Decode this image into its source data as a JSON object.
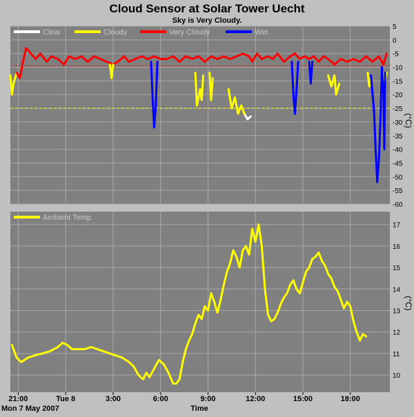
{
  "title": "Cloud Sensor at Solar Tower Uecht",
  "subtitle": "Sky is Very Cloudy.",
  "x_axis": {
    "label": "Time",
    "date_label": "Mon 7 May 2007",
    "ticks": [
      "21:00",
      "Tue 8",
      "3:00",
      "6:00",
      "9:00",
      "12:00",
      "15:00",
      "18:00"
    ]
  },
  "colors": {
    "background": "#c0c0c0",
    "plot_background": "#808080",
    "grid": "#a8a8a8",
    "clear": "#ffffff",
    "cloudy": "#ffff00",
    "very_cloudy": "#ff0000",
    "wet": "#0000ff",
    "ambient": "#ffff00"
  },
  "chart_data": [
    {
      "type": "line",
      "title": "Cloud Sensor at Solar Tower Uecht",
      "subtitle": "Sky is Very Cloudy.",
      "ylabel": "(°C)",
      "ylim": [
        -60,
        5
      ],
      "yticks": [
        5,
        0,
        -5,
        -10,
        -15,
        -20,
        -25,
        -30,
        -35,
        -40,
        -45,
        -50,
        -55,
        -60
      ],
      "xlabel": "Time",
      "x_unit": "hours since Mon 7 May 2007 00:00",
      "xlim": [
        20.5,
        44.5
      ],
      "grid": true,
      "legend_position": "top-left",
      "legend": [
        {
          "name": "Clear",
          "color": "#ffffff"
        },
        {
          "name": "Cloudy",
          "color": "#ffff00"
        },
        {
          "name": "Very Cloudy",
          "color": "#ff0000"
        },
        {
          "name": "Wet",
          "color": "#0000ff"
        }
      ],
      "threshold_lines": [
        {
          "value": -9.5,
          "color": "#ff0000",
          "style": "dotted"
        },
        {
          "value": -25,
          "color": "#ffff00",
          "style": "dashed"
        }
      ],
      "series": [
        {
          "name": "Cloudy",
          "color": "#ffff00",
          "points": [
            [
              20.5,
              -13
            ],
            [
              20.6,
              -20
            ],
            [
              20.7,
              -16
            ],
            [
              20.9,
              -12
            ]
          ]
        },
        {
          "name": "Very Cloudy",
          "color": "#ff0000",
          "points": [
            [
              20.9,
              -12
            ],
            [
              21.1,
              -14
            ],
            [
              21.3,
              -8
            ],
            [
              21.5,
              -3
            ],
            [
              21.8,
              -5
            ],
            [
              22.1,
              -7
            ],
            [
              22.4,
              -5
            ],
            [
              22.8,
              -8
            ],
            [
              23.1,
              -6
            ],
            [
              23.5,
              -7
            ],
            [
              23.9,
              -9
            ],
            [
              24.2,
              -6
            ],
            [
              24.6,
              -7
            ],
            [
              25.0,
              -6
            ],
            [
              25.4,
              -8
            ],
            [
              25.8,
              -6
            ],
            [
              26.2,
              -7
            ],
            [
              26.6,
              -8
            ],
            [
              27.0,
              -9
            ],
            [
              27.3,
              -8
            ],
            [
              27.7,
              -6
            ],
            [
              28.0,
              -8
            ],
            [
              28.4,
              -7
            ],
            [
              28.8,
              -6
            ],
            [
              29.2,
              -7
            ],
            [
              29.6,
              -6
            ],
            [
              30.0,
              -7
            ],
            [
              30.4,
              -7
            ],
            [
              30.8,
              -6
            ],
            [
              31.2,
              -8
            ],
            [
              31.6,
              -6
            ],
            [
              32.0,
              -7
            ],
            [
              32.4,
              -6
            ],
            [
              32.8,
              -8
            ],
            [
              33.2,
              -6
            ],
            [
              33.6,
              -7
            ],
            [
              34.0,
              -6
            ],
            [
              34.4,
              -7
            ],
            [
              34.8,
              -6
            ],
            [
              35.2,
              -5
            ],
            [
              35.6,
              -6
            ],
            [
              35.8,
              -8
            ],
            [
              36.1,
              -5
            ],
            [
              36.4,
              -7
            ],
            [
              36.8,
              -6
            ],
            [
              37.1,
              -7
            ],
            [
              37.4,
              -5
            ],
            [
              37.8,
              -8
            ],
            [
              38.2,
              -6
            ],
            [
              38.5,
              -5
            ],
            [
              38.8,
              -7
            ],
            [
              39.1,
              -6
            ],
            [
              39.4,
              -7
            ],
            [
              39.7,
              -6
            ],
            [
              40.0,
              -8
            ],
            [
              40.3,
              -6
            ],
            [
              40.6,
              -7
            ],
            [
              41.0,
              -9
            ],
            [
              41.4,
              -7
            ],
            [
              41.8,
              -8
            ],
            [
              42.2,
              -7
            ],
            [
              42.6,
              -8
            ],
            [
              43.0,
              -6
            ],
            [
              43.4,
              -8
            ],
            [
              43.8,
              -6
            ],
            [
              44.1,
              -9
            ],
            [
              44.3,
              -5
            ]
          ]
        },
        {
          "name": "Cloudy",
          "color": "#ffff00",
          "points": [
            [
              26.8,
              -9
            ],
            [
              26.9,
              -14
            ],
            [
              27.0,
              -9
            ]
          ]
        },
        {
          "name": "Cloudy",
          "color": "#ffff00",
          "points": [
            [
              32.2,
              -12
            ],
            [
              32.3,
              -24
            ],
            [
              32.5,
              -18
            ],
            [
              32.6,
              -22
            ],
            [
              32.7,
              -13
            ]
          ]
        },
        {
          "name": "Cloudy",
          "color": "#ffff00",
          "points": [
            [
              33.1,
              -12
            ],
            [
              33.2,
              -22
            ],
            [
              33.3,
              -14
            ]
          ]
        },
        {
          "name": "Cloudy",
          "color": "#ffff00",
          "points": [
            [
              34.3,
              -18
            ],
            [
              34.5,
              -25
            ],
            [
              34.7,
              -21
            ],
            [
              34.9,
              -27
            ],
            [
              35.1,
              -24
            ]
          ]
        },
        {
          "name": "Clear",
          "color": "#ffffff",
          "points": [
            [
              35.3,
              -27
            ],
            [
              35.5,
              -29
            ],
            [
              35.7,
              -28
            ]
          ]
        },
        {
          "name": "Cloudy",
          "color": "#ffff00",
          "points": [
            [
              35.1,
              -24
            ],
            [
              35.3,
              -27
            ]
          ]
        },
        {
          "name": "Cloudy",
          "color": "#ffff00",
          "points": [
            [
              40.6,
              -13
            ],
            [
              40.8,
              -17
            ],
            [
              41.0,
              -13
            ],
            [
              41.1,
              -20
            ],
            [
              41.3,
              -16
            ]
          ]
        },
        {
          "name": "Cloudy",
          "color": "#ffff00",
          "points": [
            [
              43.1,
              -12
            ],
            [
              43.2,
              -17
            ],
            [
              43.3,
              -13
            ]
          ]
        },
        {
          "name": "Cloudy",
          "color": "#ffff00",
          "points": [
            [
              44.05,
              -12
            ],
            [
              44.15,
              -16
            ],
            [
              44.3,
              -12
            ]
          ]
        },
        {
          "name": "Wet",
          "color": "#0000ff",
          "points": [
            [
              29.4,
              -8
            ],
            [
              29.5,
              -22
            ],
            [
              29.6,
              -32
            ],
            [
              29.7,
              -24
            ],
            [
              29.8,
              -8
            ]
          ]
        },
        {
          "name": "Wet",
          "color": "#0000ff",
          "points": [
            [
              38.3,
              -8
            ],
            [
              38.4,
              -20
            ],
            [
              38.5,
              -27
            ],
            [
              38.6,
              -18
            ],
            [
              38.7,
              -8
            ]
          ]
        },
        {
          "name": "Wet",
          "color": "#0000ff",
          "points": [
            [
              39.4,
              -8
            ],
            [
              39.5,
              -16
            ],
            [
              39.6,
              -8
            ]
          ]
        },
        {
          "name": "Wet",
          "color": "#0000ff",
          "points": [
            [
              43.3,
              -13
            ],
            [
              43.5,
              -26
            ],
            [
              43.6,
              -40
            ],
            [
              43.7,
              -52
            ],
            [
              43.8,
              -44
            ],
            [
              43.9,
              -30
            ],
            [
              44.0,
              -10
            ],
            [
              44.1,
              -20
            ],
            [
              44.15,
              -40
            ],
            [
              44.2,
              -12
            ]
          ]
        }
      ]
    },
    {
      "type": "line",
      "ylabel": "(°C)",
      "ylim": [
        9.2,
        17.6
      ],
      "yticks": [
        10,
        11,
        12,
        13,
        14,
        15,
        16,
        17
      ],
      "xlabel": "Time",
      "x_unit": "hours since Mon 7 May 2007 00:00",
      "xlim": [
        20.5,
        44.5
      ],
      "grid": true,
      "legend_position": "top-left",
      "legend": [
        {
          "name": "Ambient Temp",
          "color": "#ffff00"
        }
      ],
      "series": [
        {
          "name": "Ambient Temp",
          "color": "#ffff00",
          "points": [
            [
              20.6,
              11.4
            ],
            [
              20.9,
              10.8
            ],
            [
              21.2,
              10.6
            ],
            [
              21.6,
              10.8
            ],
            [
              22.0,
              10.9
            ],
            [
              22.5,
              11.0
            ],
            [
              23.0,
              11.1
            ],
            [
              23.5,
              11.3
            ],
            [
              23.8,
              11.5
            ],
            [
              24.1,
              11.4
            ],
            [
              24.4,
              11.2
            ],
            [
              24.8,
              11.2
            ],
            [
              25.2,
              11.2
            ],
            [
              25.6,
              11.3
            ],
            [
              26.0,
              11.2
            ],
            [
              26.4,
              11.1
            ],
            [
              26.8,
              11.0
            ],
            [
              27.2,
              10.9
            ],
            [
              27.6,
              10.8
            ],
            [
              28.0,
              10.6
            ],
            [
              28.3,
              10.4
            ],
            [
              28.6,
              10.0
            ],
            [
              28.9,
              9.8
            ],
            [
              29.1,
              10.1
            ],
            [
              29.3,
              9.9
            ],
            [
              29.6,
              10.3
            ],
            [
              29.9,
              10.7
            ],
            [
              30.2,
              10.5
            ],
            [
              30.5,
              10.1
            ],
            [
              30.8,
              9.6
            ],
            [
              31.0,
              9.6
            ],
            [
              31.2,
              9.8
            ],
            [
              31.4,
              10.6
            ],
            [
              31.6,
              11.2
            ],
            [
              31.8,
              11.6
            ],
            [
              32.0,
              11.9
            ],
            [
              32.2,
              12.4
            ],
            [
              32.4,
              12.8
            ],
            [
              32.6,
              12.6
            ],
            [
              32.8,
              13.2
            ],
            [
              33.0,
              13.0
            ],
            [
              33.2,
              13.8
            ],
            [
              33.4,
              13.4
            ],
            [
              33.6,
              12.9
            ],
            [
              33.8,
              13.5
            ],
            [
              34.0,
              14.2
            ],
            [
              34.2,
              14.8
            ],
            [
              34.4,
              15.2
            ],
            [
              34.6,
              15.8
            ],
            [
              34.8,
              15.5
            ],
            [
              35.0,
              15.0
            ],
            [
              35.2,
              15.8
            ],
            [
              35.4,
              16.0
            ],
            [
              35.6,
              15.6
            ],
            [
              35.8,
              16.8
            ],
            [
              36.0,
              16.2
            ],
            [
              36.2,
              17.0
            ],
            [
              36.4,
              16.0
            ],
            [
              36.6,
              14.0
            ],
            [
              36.8,
              12.8
            ],
            [
              37.0,
              12.5
            ],
            [
              37.2,
              12.6
            ],
            [
              37.4,
              12.9
            ],
            [
              37.6,
              13.3
            ],
            [
              37.8,
              13.6
            ],
            [
              38.0,
              13.8
            ],
            [
              38.2,
              14.2
            ],
            [
              38.4,
              14.4
            ],
            [
              38.6,
              14.0
            ],
            [
              38.8,
              13.8
            ],
            [
              39.0,
              14.3
            ],
            [
              39.2,
              14.8
            ],
            [
              39.4,
              15.0
            ],
            [
              39.6,
              15.4
            ],
            [
              39.8,
              15.5
            ],
            [
              40.0,
              15.7
            ],
            [
              40.2,
              15.3
            ],
            [
              40.4,
              15.1
            ],
            [
              40.6,
              14.7
            ],
            [
              40.8,
              14.5
            ],
            [
              41.0,
              14.1
            ],
            [
              41.2,
              13.9
            ],
            [
              41.4,
              13.5
            ],
            [
              41.6,
              13.1
            ],
            [
              41.8,
              13.4
            ],
            [
              42.0,
              13.2
            ],
            [
              42.2,
              12.5
            ],
            [
              42.4,
              12.0
            ],
            [
              42.6,
              11.6
            ],
            [
              42.8,
              11.9
            ],
            [
              43.0,
              11.8
            ]
          ]
        }
      ]
    }
  ]
}
